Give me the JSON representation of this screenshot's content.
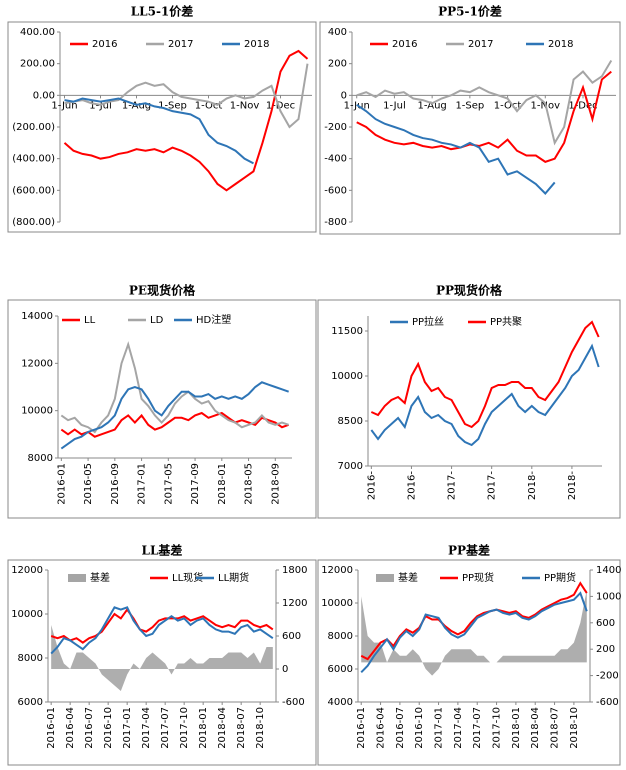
{
  "chart_data": [
    {
      "type": "line",
      "title": "LL5-1价差",
      "categories": [
        "1-Jun",
        null,
        null,
        null,
        "1-Jul",
        null,
        null,
        null,
        "1-Aug",
        null,
        null,
        null,
        "1-Sep",
        null,
        null,
        null,
        "1-Oct",
        null,
        null,
        null,
        "1-Nov",
        null,
        null,
        null,
        "1-Dec",
        null,
        null,
        null
      ],
      "series": [
        {
          "name": "2016",
          "color": "#ff0000",
          "values": [
            -300,
            -350,
            -370,
            -380,
            -400,
            -390,
            -370,
            -360,
            -340,
            -350,
            -340,
            -360,
            -330,
            -350,
            -380,
            -420,
            -480,
            -560,
            -600,
            -560,
            -520,
            -480,
            -300,
            -100,
            150,
            250,
            280,
            230
          ]
        },
        {
          "name": "2017",
          "color": "#a5a5a5",
          "values": [
            -50,
            -40,
            -30,
            -50,
            -60,
            -40,
            -30,
            20,
            60,
            80,
            60,
            70,
            20,
            -10,
            -20,
            -30,
            -40,
            -60,
            -20,
            0,
            -20,
            -10,
            30,
            60,
            -100,
            -200,
            -150,
            200
          ]
        },
        {
          "name": "2018",
          "color": "#2e75b6",
          "values": [
            -30,
            -40,
            -20,
            -30,
            -40,
            -30,
            -20,
            -40,
            -60,
            -50,
            -70,
            -80,
            -100,
            -110,
            -120,
            -150,
            -250,
            -300,
            -320,
            -350,
            -400,
            -430,
            null,
            null,
            null,
            null,
            null,
            null
          ]
        }
      ],
      "ylim": [
        -800,
        400
      ],
      "yticks": [
        {
          "value": 400,
          "label": "400.00"
        },
        {
          "value": 200,
          "label": "200.00"
        },
        {
          "value": 0,
          "label": "0.00"
        },
        {
          "value": -200,
          "label": "(200.00)"
        },
        {
          "value": -400,
          "label": "(400.00)"
        },
        {
          "value": -600,
          "label": "(600.00)"
        },
        {
          "value": -800,
          "label": "(800.00)"
        }
      ],
      "negative_tick_color": "#c00000"
    },
    {
      "type": "line",
      "title": "PP5-1价差",
      "categories": [
        "1-Jun",
        null,
        null,
        null,
        "1-Jul",
        null,
        null,
        null,
        "1-Aug",
        null,
        null,
        null,
        "1-Sep",
        null,
        null,
        null,
        "1-Oct",
        null,
        null,
        null,
        "1-Nov",
        null,
        null,
        null,
        "1-Dec",
        null,
        null,
        null
      ],
      "series": [
        {
          "name": "2016",
          "color": "#ff0000",
          "values": [
            -170,
            -200,
            -250,
            -280,
            -300,
            -310,
            -300,
            -320,
            -330,
            -320,
            -340,
            -330,
            -310,
            -320,
            -300,
            -330,
            -280,
            -350,
            -380,
            -380,
            -420,
            -400,
            -300,
            -100,
            50,
            -150,
            100,
            150
          ]
        },
        {
          "name": "2017",
          "color": "#a5a5a5",
          "values": [
            0,
            20,
            -10,
            30,
            10,
            20,
            -20,
            -30,
            -50,
            -20,
            0,
            30,
            20,
            50,
            20,
            0,
            -20,
            -100,
            -30,
            0,
            -50,
            -300,
            -200,
            100,
            150,
            80,
            120,
            220
          ]
        },
        {
          "name": "2018",
          "color": "#2e75b6",
          "values": [
            -60,
            -100,
            -150,
            -180,
            -200,
            -220,
            -250,
            -270,
            -280,
            -300,
            -310,
            -330,
            -300,
            -330,
            -420,
            -400,
            -500,
            -480,
            -520,
            -560,
            -620,
            -550,
            null,
            null,
            null,
            null,
            null,
            null
          ]
        }
      ],
      "ylim": [
        -800,
        400
      ],
      "yticks": [
        400,
        200,
        0,
        -200,
        -400,
        -600,
        -800
      ]
    },
    {
      "type": "line",
      "title": "PE现货价格",
      "categories": [
        "2016-01",
        null,
        null,
        null,
        "2016-05",
        null,
        null,
        null,
        "2016-09",
        null,
        null,
        null,
        "2017-01",
        null,
        null,
        null,
        "2017-05",
        null,
        null,
        null,
        "2017-09",
        null,
        null,
        null,
        "2018-01",
        null,
        null,
        null,
        "2018-05",
        null,
        null,
        null,
        "2018-09",
        null,
        null
      ],
      "series": [
        {
          "name": "LL",
          "color": "#ff0000",
          "values": [
            9200,
            9000,
            9200,
            9000,
            9100,
            8900,
            9000,
            9100,
            9200,
            9600,
            9800,
            9500,
            9800,
            9400,
            9200,
            9300,
            9500,
            9700,
            9700,
            9600,
            9800,
            9900,
            9700,
            9800,
            9900,
            9700,
            9500,
            9600,
            9500,
            9400,
            9700,
            9600,
            9500,
            9300,
            9400
          ]
        },
        {
          "name": "LD",
          "color": "#a5a5a5",
          "values": [
            9800,
            9600,
            9700,
            9400,
            9300,
            9100,
            9500,
            9800,
            10500,
            12000,
            12800,
            11800,
            10500,
            10200,
            9800,
            9500,
            9800,
            10300,
            10600,
            10800,
            10500,
            10300,
            10400,
            10000,
            9800,
            9600,
            9500,
            9300,
            9400,
            9500,
            9800,
            9500,
            9400,
            9500,
            9400
          ]
        },
        {
          "name": "HD注塑",
          "color": "#2e75b6",
          "values": [
            8400,
            8600,
            8800,
            8900,
            9100,
            9200,
            9300,
            9500,
            9800,
            10500,
            10900,
            11000,
            10900,
            10500,
            10000,
            9800,
            10200,
            10500,
            10800,
            10800,
            10600,
            10600,
            10700,
            10500,
            10600,
            10500,
            10600,
            10500,
            10700,
            11000,
            11200,
            11100,
            11000,
            10900,
            10800
          ]
        }
      ],
      "ylim": [
        8000,
        14000
      ],
      "yticks": [
        8000,
        10000,
        12000,
        14000
      ]
    },
    {
      "type": "line",
      "title": "PP现货价格",
      "categories": [
        "2016-",
        null,
        null,
        null,
        null,
        null,
        "2016-",
        null,
        null,
        null,
        null,
        null,
        "2017-",
        null,
        null,
        null,
        null,
        null,
        "2017-",
        null,
        null,
        null,
        null,
        null,
        "2018-",
        null,
        null,
        null,
        null,
        null,
        "2018-",
        null,
        null,
        null,
        null
      ],
      "series": [
        {
          "name": "PP拉丝",
          "color": "#2e75b6",
          "values": [
            8200,
            7900,
            8200,
            8400,
            8600,
            8300,
            9000,
            9300,
            8800,
            8600,
            8700,
            8500,
            8400,
            8000,
            7800,
            7700,
            7900,
            8400,
            8800,
            9000,
            9200,
            9400,
            9000,
            8800,
            9000,
            8800,
            8700,
            9000,
            9300,
            9600,
            10000,
            10200,
            10600,
            11000,
            10300
          ]
        },
        {
          "name": "PP共聚",
          "color": "#ff0000",
          "values": [
            8800,
            8700,
            9000,
            9200,
            9300,
            9100,
            10000,
            10400,
            9800,
            9500,
            9600,
            9300,
            9200,
            8800,
            8400,
            8300,
            8500,
            9000,
            9600,
            9700,
            9700,
            9800,
            9800,
            9600,
            9600,
            9300,
            9200,
            9500,
            9800,
            10300,
            10800,
            11200,
            11600,
            11800,
            11300
          ]
        }
      ],
      "ylim": [
        7000,
        12000
      ],
      "yticks": [
        7000,
        8500,
        10000,
        11500
      ]
    },
    {
      "type": "line",
      "title": "LL基差",
      "categories": [
        "2016-01",
        null,
        null,
        "2016-04",
        null,
        null,
        "2016-07",
        null,
        null,
        "2016-10",
        null,
        null,
        "2017-01",
        null,
        null,
        "2017-04",
        null,
        null,
        "2017-07",
        null,
        null,
        "2017-10",
        null,
        null,
        "2018-01",
        null,
        null,
        "2018-04",
        null,
        null,
        "2018-07",
        null,
        null,
        "2018-10",
        null,
        null
      ],
      "series": [
        {
          "name": "基差",
          "color": "#a5a5a5",
          "type": "area",
          "axis": "y2",
          "values": [
            800,
            400,
            100,
            0,
            300,
            300,
            200,
            100,
            -100,
            -200,
            -300,
            -400,
            -100,
            100,
            0,
            200,
            300,
            200,
            100,
            -100,
            100,
            100,
            200,
            100,
            100,
            200,
            200,
            200,
            300,
            300,
            300,
            200,
            300,
            100,
            400,
            400
          ]
        },
        {
          "name": "LL现货",
          "color": "#ff0000",
          "values": [
            9000,
            8900,
            9000,
            8800,
            8900,
            8700,
            8900,
            9000,
            9200,
            9600,
            10000,
            9800,
            10200,
            9800,
            9300,
            9200,
            9400,
            9700,
            9800,
            9800,
            9800,
            9900,
            9700,
            9800,
            9900,
            9700,
            9500,
            9400,
            9500,
            9400,
            9700,
            9700,
            9500,
            9400,
            9500,
            9300
          ]
        },
        {
          "name": "LL期货",
          "color": "#2e75b6",
          "values": [
            8200,
            8500,
            8900,
            8800,
            8600,
            8400,
            8700,
            8900,
            9300,
            9800,
            10300,
            10200,
            10300,
            9700,
            9300,
            9000,
            9100,
            9500,
            9700,
            9900,
            9700,
            9800,
            9500,
            9700,
            9800,
            9500,
            9300,
            9200,
            9200,
            9100,
            9400,
            9500,
            9200,
            9300,
            9100,
            8900
          ]
        }
      ],
      "ylim": [
        6000,
        12000
      ],
      "yticks": [
        6000,
        8000,
        10000,
        12000
      ],
      "y2lim": [
        -600,
        1800
      ],
      "y2ticks": [
        -600,
        0,
        600,
        1200,
        1800
      ]
    },
    {
      "type": "line",
      "title": "PP基差",
      "categories": [
        "2016-01",
        null,
        null,
        "2016-04",
        null,
        null,
        "2016-07",
        null,
        null,
        "2016-10",
        null,
        null,
        "2017-01",
        null,
        null,
        "2017-04",
        null,
        null,
        "2017-07",
        null,
        null,
        "2017-10",
        null,
        null,
        "2018-01",
        null,
        null,
        "2018-04",
        null,
        null,
        "2018-07",
        null,
        null,
        "2018-10",
        null,
        null
      ],
      "series": [
        {
          "name": "基差",
          "color": "#a5a5a5",
          "type": "area",
          "axis": "y2",
          "values": [
            1000,
            400,
            300,
            300,
            0,
            200,
            100,
            100,
            200,
            100,
            -100,
            -200,
            -100,
            100,
            200,
            200,
            200,
            200,
            100,
            100,
            0,
            0,
            100,
            100,
            100,
            100,
            100,
            100,
            100,
            100,
            100,
            200,
            200,
            300,
            600,
            1100
          ]
        },
        {
          "name": "PP现货",
          "color": "#ff0000",
          "values": [
            6800,
            6600,
            7100,
            7600,
            7800,
            7400,
            8000,
            8400,
            8200,
            8500,
            9200,
            9000,
            9000,
            8600,
            8300,
            8100,
            8300,
            8800,
            9200,
            9400,
            9500,
            9600,
            9500,
            9400,
            9500,
            9200,
            9100,
            9300,
            9600,
            9800,
            10000,
            10200,
            10300,
            10500,
            11200,
            10600
          ]
        },
        {
          "name": "PP期货",
          "color": "#2e75b6",
          "values": [
            5800,
            6200,
            6800,
            7300,
            7800,
            7200,
            7900,
            8300,
            8000,
            8400,
            9300,
            9200,
            9100,
            8500,
            8100,
            7900,
            8100,
            8600,
            9100,
            9300,
            9500,
            9600,
            9400,
            9300,
            9400,
            9100,
            9000,
            9200,
            9500,
            9700,
            9900,
            10000,
            10100,
            10200,
            10600,
            9500
          ]
        }
      ],
      "ylim": [
        4000,
        12000
      ],
      "yticks": [
        4000,
        6000,
        8000,
        10000,
        12000
      ],
      "y2lim": [
        -600,
        1400
      ],
      "y2ticks": [
        -600,
        -200,
        200,
        600,
        1000,
        1400
      ]
    }
  ]
}
